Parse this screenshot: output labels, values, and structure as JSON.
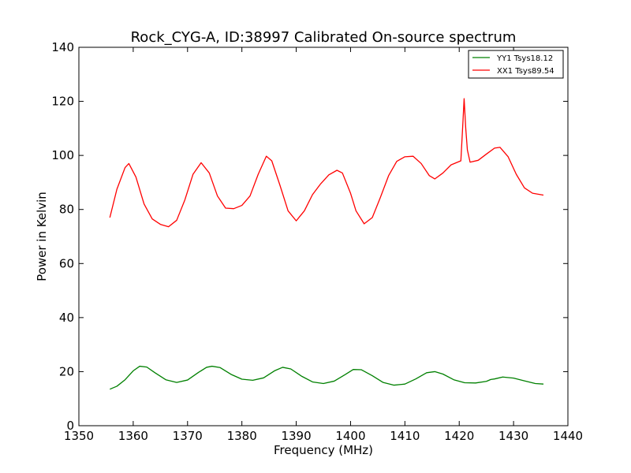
{
  "chart_data": {
    "type": "line",
    "title": "Rock_CYG-A, ID:38997 Calibrated On-source spectrum",
    "xlabel": "Frequency (MHz)",
    "ylabel": "Power in Kelvin",
    "xlim": [
      1350,
      1440
    ],
    "ylim": [
      0,
      140
    ],
    "xticks": [
      "1350",
      "1360",
      "1370",
      "1380",
      "1390",
      "1400",
      "1410",
      "1420",
      "1430",
      "1440"
    ],
    "yticks": [
      "0",
      "20",
      "40",
      "60",
      "80",
      "100",
      "120",
      "140"
    ],
    "grid": false,
    "legend_position": "top-right",
    "series": [
      {
        "name": "YY1 Tsys18.12",
        "color": "#008000",
        "points": [
          [
            1355.7,
            13.5
          ],
          [
            1357.0,
            14.6
          ],
          [
            1358.5,
            17.0
          ],
          [
            1360.0,
            20.3
          ],
          [
            1361.2,
            22.0
          ],
          [
            1362.5,
            21.7
          ],
          [
            1364.0,
            19.6
          ],
          [
            1366.0,
            17.0
          ],
          [
            1368.0,
            16.0
          ],
          [
            1370.0,
            16.9
          ],
          [
            1372.0,
            19.7
          ],
          [
            1373.5,
            21.6
          ],
          [
            1374.5,
            22.0
          ],
          [
            1376.0,
            21.5
          ],
          [
            1378.0,
            19.0
          ],
          [
            1380.0,
            17.2
          ],
          [
            1382.0,
            16.8
          ],
          [
            1384.0,
            17.7
          ],
          [
            1386.0,
            20.3
          ],
          [
            1387.5,
            21.6
          ],
          [
            1389.0,
            21.0
          ],
          [
            1391.0,
            18.3
          ],
          [
            1393.0,
            16.2
          ],
          [
            1395.0,
            15.6
          ],
          [
            1397.0,
            16.5
          ],
          [
            1399.0,
            18.9
          ],
          [
            1400.5,
            20.8
          ],
          [
            1402.0,
            20.7
          ],
          [
            1404.0,
            18.5
          ],
          [
            1406.0,
            16.0
          ],
          [
            1408.0,
            15.0
          ],
          [
            1410.0,
            15.4
          ],
          [
            1412.0,
            17.3
          ],
          [
            1414.0,
            19.6
          ],
          [
            1415.5,
            20.0
          ],
          [
            1417.0,
            19.1
          ],
          [
            1419.0,
            17.0
          ],
          [
            1421.0,
            15.9
          ],
          [
            1423.0,
            15.8
          ],
          [
            1425.0,
            16.4
          ],
          [
            1425.8,
            17.1
          ],
          [
            1426.5,
            17.3
          ],
          [
            1428.0,
            18.0
          ],
          [
            1430.0,
            17.6
          ],
          [
            1432.0,
            16.6
          ],
          [
            1434.0,
            15.6
          ],
          [
            1435.5,
            15.4
          ]
        ]
      },
      {
        "name": "XX1 Tsys89.54",
        "color": "#ff0000",
        "points": [
          [
            1355.7,
            77.0
          ],
          [
            1357.0,
            87.5
          ],
          [
            1358.5,
            95.5
          ],
          [
            1359.2,
            97.0
          ],
          [
            1360.5,
            92.0
          ],
          [
            1362.0,
            82.0
          ],
          [
            1363.5,
            76.5
          ],
          [
            1365.0,
            74.5
          ],
          [
            1366.5,
            73.6
          ],
          [
            1368.0,
            76.0
          ],
          [
            1369.5,
            83.5
          ],
          [
            1371.0,
            93.0
          ],
          [
            1372.5,
            97.3
          ],
          [
            1374.0,
            93.5
          ],
          [
            1375.5,
            85.0
          ],
          [
            1377.0,
            80.5
          ],
          [
            1378.5,
            80.3
          ],
          [
            1380.0,
            81.5
          ],
          [
            1381.5,
            85.0
          ],
          [
            1383.0,
            93.0
          ],
          [
            1384.5,
            99.7
          ],
          [
            1385.5,
            98.0
          ],
          [
            1387.0,
            89.0
          ],
          [
            1388.5,
            79.5
          ],
          [
            1390.0,
            75.8
          ],
          [
            1391.5,
            79.5
          ],
          [
            1393.0,
            85.5
          ],
          [
            1394.5,
            89.5
          ],
          [
            1396.0,
            92.8
          ],
          [
            1397.5,
            94.5
          ],
          [
            1398.5,
            93.5
          ],
          [
            1400.0,
            86.0
          ],
          [
            1401.0,
            79.5
          ],
          [
            1402.5,
            74.7
          ],
          [
            1404.0,
            77.0
          ],
          [
            1405.5,
            84.5
          ],
          [
            1407.0,
            92.5
          ],
          [
            1408.5,
            97.8
          ],
          [
            1410.0,
            99.5
          ],
          [
            1411.5,
            99.7
          ],
          [
            1413.0,
            97.0
          ],
          [
            1414.5,
            92.5
          ],
          [
            1415.5,
            91.3
          ],
          [
            1417.0,
            93.5
          ],
          [
            1418.5,
            96.5
          ],
          [
            1420.3,
            98.0
          ],
          [
            1420.7,
            113.0
          ],
          [
            1420.9,
            121.0
          ],
          [
            1421.2,
            110.0
          ],
          [
            1421.5,
            102.0
          ],
          [
            1422.0,
            97.5
          ],
          [
            1423.5,
            98.2
          ],
          [
            1425.0,
            100.5
          ],
          [
            1426.5,
            102.7
          ],
          [
            1427.5,
            103.0
          ],
          [
            1429.0,
            99.5
          ],
          [
            1430.5,
            93.0
          ],
          [
            1432.0,
            88.0
          ],
          [
            1433.5,
            86.0
          ],
          [
            1435.5,
            85.3
          ]
        ]
      }
    ]
  }
}
